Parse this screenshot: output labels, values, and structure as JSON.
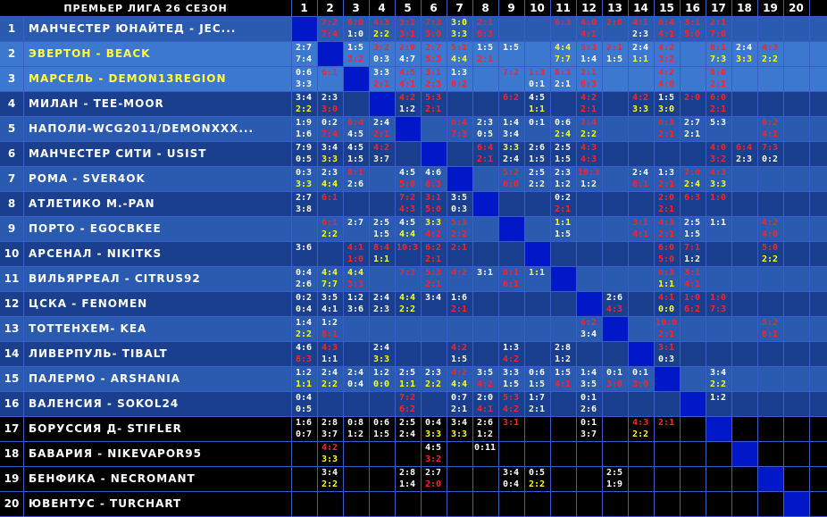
{
  "title": "ПРЕМЬЕР ЛИГА 26 СЕЗОН",
  "columns": [
    "1",
    "2",
    "3",
    "4",
    "5",
    "6",
    "7",
    "8",
    "9",
    "10",
    "11",
    "12",
    "13",
    "14",
    "15",
    "16",
    "17",
    "18",
    "19",
    "20"
  ],
  "colors": {
    "row_dark_blue": "#1b3f8f",
    "row_mid_blue": "#2a5bb0",
    "row_light_blue": "#3d78d0",
    "row_black": "#000000",
    "diag": "#0018c8",
    "grid": "#3a5ec8"
  },
  "teams": [
    {
      "rank": "1",
      "name": "МАНЧЕСТЕР ЮНАЙТЕД - JEC...",
      "highlight": false
    },
    {
      "rank": "2",
      "name": "ЭВЕРТОН - BEACK",
      "highlight": true
    },
    {
      "rank": "3",
      "name": "МАРСЕЛЬ - DEMON13REGION",
      "highlight": true
    },
    {
      "rank": "4",
      "name": "МИЛАН - TEE-MOOR",
      "highlight": false
    },
    {
      "rank": "5",
      "name": "НАПОЛИ-WCG2011/DEMONXXX...",
      "highlight": false
    },
    {
      "rank": "6",
      "name": "МАНЧЕСТЕР СИТИ - USIST",
      "highlight": false
    },
    {
      "rank": "7",
      "name": "РОМА - SVER4OK",
      "highlight": false
    },
    {
      "rank": "8",
      "name": "АТЛЕТИКО М.-PAN",
      "highlight": false
    },
    {
      "rank": "9",
      "name": "ПОРТО - EGOCBKEE",
      "highlight": false
    },
    {
      "rank": "10",
      "name": "АРСЕНАЛ - NIKITKS",
      "highlight": false
    },
    {
      "rank": "11",
      "name": "ВИЛЬЯРРЕАЛ - CITRUS92",
      "highlight": false
    },
    {
      "rank": "12",
      "name": "ЦСКА - FENOMEN",
      "highlight": false
    },
    {
      "rank": "13",
      "name": "ТОТТЕНХЕМ- KEA",
      "highlight": false
    },
    {
      "rank": "14",
      "name": "ЛИВЕРПУЛЬ- TIBALT",
      "highlight": false
    },
    {
      "rank": "15",
      "name": "ПАЛЕРМО - ARSHANIA",
      "highlight": false
    },
    {
      "rank": "16",
      "name": "ВАЛЕНСИЯ - SOKOL24",
      "highlight": false
    },
    {
      "rank": "17",
      "name": "БОРУССИЯ Д- STIFLER",
      "highlight": false
    },
    {
      "rank": "18",
      "name": "БАВАРИЯ - NIKEVAPOR95",
      "highlight": false
    },
    {
      "rank": "19",
      "name": "БЕНФИКА - NECROMANT",
      "highlight": false
    },
    {
      "rank": "20",
      "name": "ЮВЕНТУС - TURCHART",
      "highlight": false
    }
  ],
  "results": [
    [
      "",
      "7:2r|7:4r",
      "6:0r|1:0w",
      "4:3r|2:2y",
      "3:1r|3:1r",
      "7:3r|5:0r",
      "3:0y|3:3y",
      "2:1r|6:3r",
      "",
      "",
      "6:3r|",
      "4:0r|4:1r",
      "2:0r|",
      "4:1r|2:3w",
      "6:4r|4:1r",
      "3:1r|5:0r",
      "2:1r|7:0r",
      "",
      "",
      ""
    ],
    [
      "2:7w|7:4w",
      "",
      "1:5w|3:2r",
      "3:2r|0:3w",
      "2:0r|4:7w",
      "2:7r|5:3r",
      "5:1r|4:4y",
      "1:5w|2:1r",
      "1:5w|",
      "",
      "4:4y|7:7y",
      "5:3r|1:4w",
      "2:1r|1:5w",
      "2:4w|1:1y",
      "4:2r|3:2r",
      "",
      "8:1r|7:3y",
      "2:4w|3:3y",
      "4:3r|2:2y",
      ""
    ],
    [
      "0:6w|3:3w",
      "6:1r|",
      "",
      "3:3w|2:1r",
      "4:5r|4:1r",
      "3:1r|2:3r",
      "1:3w|6:2r",
      "",
      "7:2r|",
      "1:3r|0:1w",
      "8:3r|2:1w",
      "2:1r|6:3r",
      "",
      "",
      "4:2r|4:0r",
      "",
      "8:0r|2:1r",
      "",
      "",
      ""
    ],
    [
      "3:4w|2:2y",
      "2:3w|3:0r",
      "",
      "",
      "4:2r|1:2w",
      "5:3r|2:1r",
      "",
      "",
      "6:2r|",
      "4:5w|1:1y",
      "",
      "4:2r|2:1r",
      "",
      "4:2r|3:3y",
      "1:5w|3:0y",
      "2:0r|",
      "6:0r|2:1r",
      "",
      "",
      ""
    ],
    [
      "1:9w|1:6w",
      "0:2w|7:4r",
      "6:4r|4:5w",
      "2:4w|2:1r",
      "",
      "",
      "6:4r|7:3r",
      "2:3w|0:5w",
      "1:4w|3:4w",
      "0:1w|",
      "0:6w|2:4y",
      "7:4r|2:2y",
      "",
      "",
      "6:3r|2:1r",
      "2:7w|2:1w",
      "5:3w|",
      "",
      "6:2r|4:1r",
      ""
    ],
    [
      "7:9w|0:5w",
      "3:4w|3:3y",
      "4:5w|1:5w",
      "4:2r|3:7w",
      "",
      "",
      "",
      "6:4r|2:1r",
      "3:3y|2:4w",
      "2:6w|1:5w",
      "2:5w|1:5w",
      "4:3r|4:3r",
      "",
      "",
      "",
      "",
      "4:0r|3:2r",
      "6:4r|2:3w",
      "7:3r|0:2w",
      ""
    ],
    [
      "0:3w|3:3y",
      "2:3w|4:4y",
      "8:1r|2:6w",
      "",
      "4:5w|5:0r",
      "4:6w|6:3r",
      "",
      "",
      "5:2r|6:0r",
      "2:5w|2:2w",
      "2:3w|1:2w",
      "10:3r|1:2w",
      "",
      "2:4w|6:1r",
      "1:3w|2:1r",
      "7:0r|2:4y",
      "4:3r|3:3y",
      "",
      "",
      ""
    ],
    [
      "2:7w|3:8w",
      "6:1r|",
      "",
      "",
      "7:2r|4:3r",
      "3:1r|5:0r",
      "3:5w|0:3w",
      "",
      "",
      "",
      "0:2w|2:1r",
      "",
      "",
      "",
      "2:0r|2:1r",
      "6:3r|",
      "1:0r|",
      "",
      "",
      ""
    ],
    [
      "",
      "6:1r|2:2y",
      "2:7w|",
      "2:5w|1:5w",
      "4:5w|4:4y",
      "3:3y|4:2r",
      "5:3r|2:2r",
      "",
      "",
      "",
      "1:1y|1:5w",
      "",
      "",
      "3:1r|4:1r",
      "4:3r|2:1r",
      "2:5w|1:5w",
      "1:1w|",
      "",
      "4:2r|4:0r",
      ""
    ],
    [
      "3:6w|",
      "",
      "4:1r|1:0r",
      "8:4r|1:1y",
      "10:3r|",
      "6:2r|2:1r",
      "2:1r|",
      "",
      "",
      "",
      "",
      "",
      "",
      "",
      "6:0r|5:0r",
      "7:1r|1:2w",
      "",
      "",
      "5:0r|2:2y",
      ""
    ],
    [
      "0:4w|2:6w",
      "4:4y|7:7y",
      "4:4y|3:3r",
      "",
      "7:3r|",
      "5:3r|2:1r",
      "4:2r|",
      "3:1w|",
      "0:1r|6:1r",
      "1:1y|",
      "",
      "",
      "",
      "",
      "6:3r|1:1y",
      "3:1r|4:1r",
      "",
      "",
      "",
      ""
    ],
    [
      "0:2w|0:4w",
      "3:5w|4:1w",
      "1:2w|3:6w",
      "2:4w|2:3w",
      "4:4y|2:2y",
      "3:4w|",
      "1:6w|2:1r",
      "",
      "",
      "",
      "",
      "",
      "2:6w|4:3r",
      "",
      "4:1r|0:0y",
      "1:0r|6:2r",
      "1:0r|7:3r",
      "",
      "",
      ""
    ],
    [
      "1:4w|2:2y",
      "1:2w|8:1r",
      "",
      "",
      "",
      "",
      "",
      "",
      "",
      "",
      "",
      "6:2r|3:4w",
      "",
      "",
      "10:0r|2:1r",
      "",
      "",
      "",
      "5:2r|8:1r",
      ""
    ],
    [
      "4:6w|8:3r",
      "4:3r|1:1w",
      "",
      "2:4w|3:3y",
      "",
      "",
      "4:2r|1:5w",
      "",
      "1:3w|4:2r",
      "",
      "2:8w|1:2w",
      "",
      "",
      "",
      "3:1r|0:3w",
      "",
      "",
      "",
      "",
      ""
    ],
    [
      "1:2w|1:1y",
      "2:4w|2:2y",
      "2:4w|0:4w",
      "1:2w|0:0y",
      "2:5w|1:1y",
      "2:3w|2:2y",
      "4:2r|4:4y",
      "3:5w|4:2r",
      "3:3w|1:5w",
      "0:6w|1:5w",
      "1:5w|4:1r",
      "1:4w|3:5w",
      "0:1w|3:0r",
      "0:1w|3:0r",
      "",
      "",
      "3:4w|2:2y",
      "",
      "",
      ""
    ],
    [
      "0:4w|0:5w",
      "",
      "",
      "",
      "7:2r|6:2r",
      "",
      "0:7w|2:1w",
      "2:0w|4:1r",
      "5:3r|4:2r",
      "1:7w|2:1w",
      "",
      "0:1w|2:6w",
      "",
      "",
      "",
      "",
      "1:2w|",
      "",
      "",
      ""
    ],
    [
      "1:6w|0:7w",
      "2:8w|3:7w",
      "0:8w|1:2w",
      "0:6w|1:5w",
      "2:5w|2:4w",
      "0:4w|3:3y",
      "3:4w|3:3y",
      "2:6w|1:2w",
      "3:1r|",
      "",
      "",
      "0:1w|3:7w",
      "",
      "4:3r|2:2y",
      "2:1r|",
      "",
      "",
      "",
      "",
      ""
    ],
    [
      "",
      "4:2r|3:3y",
      "",
      "",
      "",
      "4:5w|3:2r",
      "",
      "0:11w|",
      "",
      "",
      "",
      "",
      "",
      "",
      "",
      "",
      "",
      "",
      "",
      ""
    ],
    [
      "",
      "3:4w|2:2y",
      "",
      "",
      "2:8w|1:4w",
      "2:7w|2:0r",
      "",
      "",
      "3:4w|0:4w",
      "0:5w|2:2y",
      "",
      "",
      "2:5w|1:9w",
      "",
      "",
      "",
      "",
      "",
      "",
      ""
    ],
    [
      "",
      "",
      "",
      "",
      "",
      "",
      "",
      "",
      "",
      "",
      "",
      "",
      "",
      "",
      "",
      "",
      "",
      "",
      "",
      ""
    ]
  ]
}
